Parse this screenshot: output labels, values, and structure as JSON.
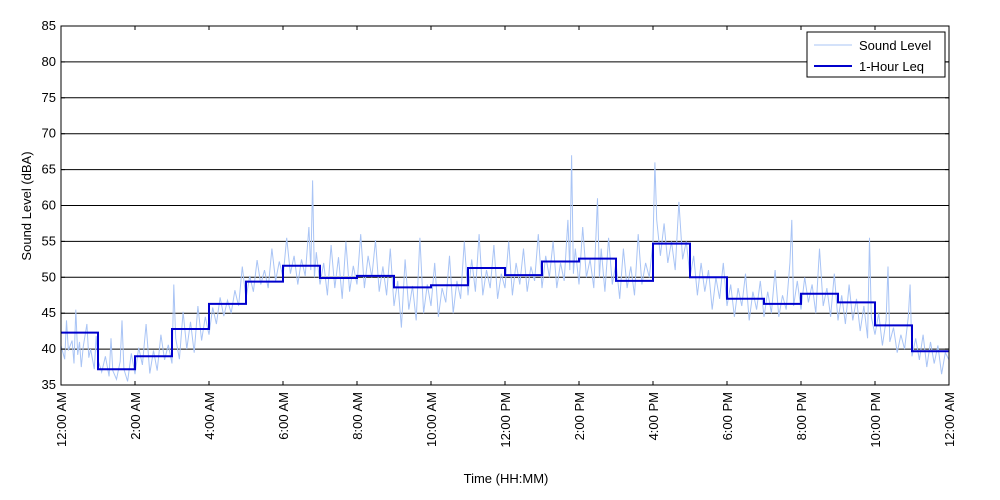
{
  "chart_data": {
    "type": "line",
    "title": "",
    "xlabel": "Time (HH:MM)",
    "ylabel": "Sound Level (dBA)",
    "xlim": [
      0,
      24
    ],
    "ylim": [
      35,
      85
    ],
    "grid": "horizontal",
    "legend_position": "top-right",
    "x_ticks": [
      0,
      2,
      4,
      6,
      8,
      10,
      12,
      14,
      16,
      18,
      20,
      22,
      24
    ],
    "x_tick_labels": [
      "12:00 AM",
      "2:00 AM",
      "4:00 AM",
      "6:00 AM",
      "8:00 AM",
      "10:00 AM",
      "12:00 PM",
      "2:00 PM",
      "4:00 PM",
      "6:00 PM",
      "8:00 PM",
      "10:00 PM",
      "12:00 AM"
    ],
    "y_ticks": [
      35,
      40,
      45,
      50,
      55,
      60,
      65,
      70,
      75,
      80,
      85
    ],
    "series": [
      {
        "name": "Sound Level",
        "color": "#a9c4f5",
        "points": [
          [
            0.0,
            40.5
          ],
          [
            0.1,
            38.6
          ],
          [
            0.15,
            44.0
          ],
          [
            0.2,
            39.8
          ],
          [
            0.3,
            41.2
          ],
          [
            0.35,
            38.0
          ],
          [
            0.4,
            45.5
          ],
          [
            0.45,
            39.2
          ],
          [
            0.5,
            41.0
          ],
          [
            0.55,
            37.5
          ],
          [
            0.6,
            40.3
          ],
          [
            0.7,
            43.5
          ],
          [
            0.75,
            38.8
          ],
          [
            0.8,
            40.0
          ],
          [
            0.9,
            37.2
          ],
          [
            0.95,
            41.8
          ],
          [
            1.0,
            38.5
          ],
          [
            1.1,
            36.8
          ],
          [
            1.2,
            39.0
          ],
          [
            1.3,
            36.2
          ],
          [
            1.35,
            41.5
          ],
          [
            1.4,
            37.0
          ],
          [
            1.5,
            35.8
          ],
          [
            1.6,
            38.3
          ],
          [
            1.65,
            44.0
          ],
          [
            1.7,
            37.2
          ],
          [
            1.8,
            35.5
          ],
          [
            1.9,
            39.4
          ],
          [
            2.0,
            36.5
          ],
          [
            2.1,
            40.2
          ],
          [
            2.2,
            37.8
          ],
          [
            2.3,
            43.5
          ],
          [
            2.4,
            36.6
          ],
          [
            2.5,
            39.8
          ],
          [
            2.6,
            37.0
          ],
          [
            2.7,
            42.0
          ],
          [
            2.8,
            38.5
          ],
          [
            2.9,
            40.6
          ],
          [
            3.0,
            38.0
          ],
          [
            3.05,
            49.0
          ],
          [
            3.1,
            41.5
          ],
          [
            3.2,
            38.6
          ],
          [
            3.3,
            45.2
          ],
          [
            3.4,
            40.0
          ],
          [
            3.5,
            43.8
          ],
          [
            3.6,
            39.5
          ],
          [
            3.7,
            46.0
          ],
          [
            3.8,
            41.2
          ],
          [
            3.9,
            44.5
          ],
          [
            4.0,
            42.0
          ],
          [
            4.1,
            45.8
          ],
          [
            4.2,
            43.5
          ],
          [
            4.3,
            47.2
          ],
          [
            4.4,
            44.6
          ],
          [
            4.5,
            46.8
          ],
          [
            4.6,
            45.0
          ],
          [
            4.7,
            48.2
          ],
          [
            4.8,
            46.0
          ],
          [
            4.9,
            51.5
          ],
          [
            5.0,
            47.0
          ],
          [
            5.1,
            50.2
          ],
          [
            5.2,
            48.0
          ],
          [
            5.3,
            52.4
          ],
          [
            5.4,
            49.0
          ],
          [
            5.5,
            51.0
          ],
          [
            5.6,
            48.5
          ],
          [
            5.7,
            54.0
          ],
          [
            5.8,
            49.5
          ],
          [
            5.9,
            52.2
          ],
          [
            6.0,
            50.0
          ],
          [
            6.1,
            55.5
          ],
          [
            6.2,
            50.5
          ],
          [
            6.3,
            53.0
          ],
          [
            6.4,
            49.0
          ],
          [
            6.5,
            52.5
          ],
          [
            6.6,
            50.2
          ],
          [
            6.7,
            57.0
          ],
          [
            6.75,
            51.0
          ],
          [
            6.8,
            63.5
          ],
          [
            6.85,
            50.0
          ],
          [
            6.9,
            53.5
          ],
          [
            7.0,
            49.0
          ],
          [
            7.1,
            52.0
          ],
          [
            7.2,
            47.5
          ],
          [
            7.3,
            54.5
          ],
          [
            7.4,
            48.5
          ],
          [
            7.5,
            52.8
          ],
          [
            7.6,
            47.0
          ],
          [
            7.7,
            55.0
          ],
          [
            7.8,
            48.0
          ],
          [
            7.9,
            51.6
          ],
          [
            8.0,
            49.0
          ],
          [
            8.1,
            56.0
          ],
          [
            8.2,
            48.5
          ],
          [
            8.3,
            53.0
          ],
          [
            8.4,
            50.0
          ],
          [
            8.5,
            55.2
          ],
          [
            8.6,
            48.0
          ],
          [
            8.7,
            51.5
          ],
          [
            8.8,
            47.5
          ],
          [
            8.9,
            54.0
          ],
          [
            9.0,
            46.0
          ],
          [
            9.1,
            49.5
          ],
          [
            9.2,
            43.0
          ],
          [
            9.3,
            52.5
          ],
          [
            9.4,
            45.5
          ],
          [
            9.5,
            48.8
          ],
          [
            9.6,
            44.0
          ],
          [
            9.7,
            55.5
          ],
          [
            9.8,
            45.0
          ],
          [
            9.9,
            49.0
          ],
          [
            10.0,
            46.0
          ],
          [
            10.1,
            52.0
          ],
          [
            10.2,
            44.5
          ],
          [
            10.3,
            48.5
          ],
          [
            10.4,
            46.5
          ],
          [
            10.5,
            53.0
          ],
          [
            10.6,
            45.0
          ],
          [
            10.7,
            49.5
          ],
          [
            10.8,
            47.0
          ],
          [
            10.9,
            55.0
          ],
          [
            11.0,
            47.5
          ],
          [
            11.1,
            52.5
          ],
          [
            11.2,
            48.0
          ],
          [
            11.3,
            56.0
          ],
          [
            11.4,
            47.5
          ],
          [
            11.5,
            51.0
          ],
          [
            11.6,
            48.5
          ],
          [
            11.7,
            54.5
          ],
          [
            11.8,
            47.0
          ],
          [
            11.9,
            50.5
          ],
          [
            12.0,
            48.5
          ],
          [
            12.1,
            55.0
          ],
          [
            12.2,
            47.5
          ],
          [
            12.3,
            52.0
          ],
          [
            12.4,
            49.0
          ],
          [
            12.5,
            54.0
          ],
          [
            12.6,
            48.0
          ],
          [
            12.7,
            51.5
          ],
          [
            12.8,
            49.5
          ],
          [
            12.9,
            56.0
          ],
          [
            13.0,
            48.5
          ],
          [
            13.1,
            53.0
          ],
          [
            13.2,
            50.0
          ],
          [
            13.3,
            55.0
          ],
          [
            13.4,
            48.5
          ],
          [
            13.5,
            52.0
          ],
          [
            13.6,
            49.5
          ],
          [
            13.7,
            58.0
          ],
          [
            13.75,
            51.0
          ],
          [
            13.8,
            67.0
          ],
          [
            13.85,
            50.5
          ],
          [
            13.9,
            54.0
          ],
          [
            14.0,
            49.0
          ],
          [
            14.1,
            57.0
          ],
          [
            14.2,
            50.0
          ],
          [
            14.3,
            52.5
          ],
          [
            14.4,
            48.5
          ],
          [
            14.5,
            61.0
          ],
          [
            14.55,
            50.0
          ],
          [
            14.6,
            54.0
          ],
          [
            14.7,
            48.0
          ],
          [
            14.8,
            55.5
          ],
          [
            14.9,
            49.0
          ],
          [
            15.0,
            52.0
          ],
          [
            15.1,
            47.0
          ],
          [
            15.2,
            54.0
          ],
          [
            15.3,
            48.5
          ],
          [
            15.4,
            51.5
          ],
          [
            15.5,
            47.5
          ],
          [
            15.6,
            56.0
          ],
          [
            15.7,
            49.0
          ],
          [
            15.8,
            52.0
          ],
          [
            15.9,
            50.0
          ],
          [
            16.0,
            55.0
          ],
          [
            16.05,
            66.0
          ],
          [
            16.1,
            58.0
          ],
          [
            16.2,
            53.0
          ],
          [
            16.3,
            57.5
          ],
          [
            16.4,
            52.0
          ],
          [
            16.5,
            55.0
          ],
          [
            16.6,
            51.0
          ],
          [
            16.7,
            60.5
          ],
          [
            16.8,
            52.5
          ],
          [
            16.9,
            55.0
          ],
          [
            17.0,
            50.0
          ],
          [
            17.1,
            53.0
          ],
          [
            17.2,
            47.5
          ],
          [
            17.3,
            52.0
          ],
          [
            17.4,
            48.0
          ],
          [
            17.5,
            51.0
          ],
          [
            17.6,
            45.5
          ],
          [
            17.7,
            50.0
          ],
          [
            17.8,
            47.0
          ],
          [
            17.9,
            52.0
          ],
          [
            18.0,
            46.0
          ],
          [
            18.1,
            49.0
          ],
          [
            18.2,
            44.5
          ],
          [
            18.3,
            48.5
          ],
          [
            18.4,
            46.0
          ],
          [
            18.5,
            50.5
          ],
          [
            18.6,
            44.0
          ],
          [
            18.7,
            48.0
          ],
          [
            18.8,
            45.5
          ],
          [
            18.9,
            49.5
          ],
          [
            19.0,
            44.5
          ],
          [
            19.1,
            48.0
          ],
          [
            19.2,
            45.0
          ],
          [
            19.3,
            51.0
          ],
          [
            19.4,
            44.5
          ],
          [
            19.5,
            47.5
          ],
          [
            19.6,
            45.5
          ],
          [
            19.7,
            52.0
          ],
          [
            19.75,
            58.0
          ],
          [
            19.8,
            46.0
          ],
          [
            19.9,
            49.5
          ],
          [
            20.0,
            45.5
          ],
          [
            20.1,
            50.0
          ],
          [
            20.2,
            46.5
          ],
          [
            20.3,
            49.0
          ],
          [
            20.4,
            45.0
          ],
          [
            20.5,
            54.0
          ],
          [
            20.6,
            46.0
          ],
          [
            20.7,
            48.5
          ],
          [
            20.8,
            44.5
          ],
          [
            20.9,
            50.5
          ],
          [
            21.0,
            44.0
          ],
          [
            21.1,
            47.5
          ],
          [
            21.2,
            43.5
          ],
          [
            21.3,
            49.0
          ],
          [
            21.4,
            44.0
          ],
          [
            21.5,
            47.0
          ],
          [
            21.6,
            42.5
          ],
          [
            21.7,
            46.0
          ],
          [
            21.8,
            41.5
          ],
          [
            21.85,
            55.5
          ],
          [
            21.9,
            44.5
          ],
          [
            22.0,
            42.0
          ],
          [
            22.1,
            45.0
          ],
          [
            22.2,
            40.5
          ],
          [
            22.3,
            44.0
          ],
          [
            22.35,
            51.5
          ],
          [
            22.4,
            41.0
          ],
          [
            22.5,
            43.0
          ],
          [
            22.6,
            39.5
          ],
          [
            22.7,
            42.0
          ],
          [
            22.8,
            40.0
          ],
          [
            22.9,
            44.5
          ],
          [
            22.95,
            49.0
          ],
          [
            23.0,
            39.0
          ],
          [
            23.1,
            41.5
          ],
          [
            23.2,
            38.5
          ],
          [
            23.3,
            42.0
          ],
          [
            23.4,
            37.5
          ],
          [
            23.5,
            41.0
          ],
          [
            23.6,
            38.0
          ],
          [
            23.7,
            40.5
          ],
          [
            23.8,
            36.5
          ],
          [
            23.9,
            39.5
          ],
          [
            24.0,
            38.5
          ]
        ]
      },
      {
        "name": "1-Hour Leq",
        "color": "#0000cc",
        "hourly_values": [
          42.3,
          37.2,
          39.0,
          42.8,
          46.3,
          49.4,
          51.6,
          49.9,
          50.2,
          48.6,
          48.9,
          51.3,
          50.3,
          52.2,
          52.6,
          49.5,
          54.7,
          50.0,
          47.0,
          46.3,
          47.7,
          46.5,
          43.3,
          39.7
        ]
      }
    ]
  }
}
